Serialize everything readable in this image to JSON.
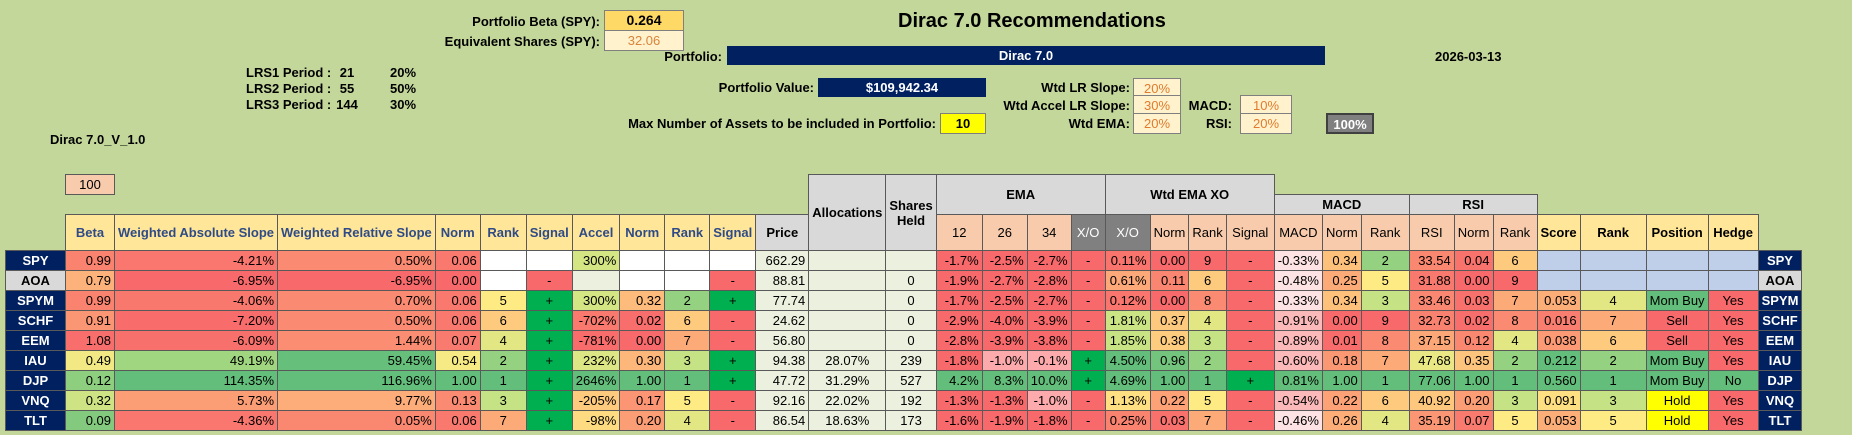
{
  "header": {
    "beta_label": "Portfolio Beta (SPY):",
    "beta_value": "0.264",
    "eq_label": "Equivalent Shares (SPY):",
    "eq_value": "32.06",
    "title": "Dirac 7.0 Recommendations",
    "portfolio_label": "Portfolio:",
    "portfolio_name": "Dirac 7.0",
    "date": "2026-03-13",
    "value_label": "Portfolio Value:",
    "value": "$109,942.34",
    "max_label": "Max Number of Assets to be included in Portfolio:",
    "max_value": "10",
    "version": "Dirac 7.0_V_1.0"
  },
  "lrs": [
    {
      "label": "LRS1 Period :",
      "period": "21",
      "pct": "20%"
    },
    {
      "label": "LRS2 Period :",
      "period": "55",
      "pct": "50%"
    },
    {
      "label": "LRS3 Period :",
      "period": "144",
      "pct": "30%"
    }
  ],
  "weights": {
    "lr_label": "Wtd LR Slope:",
    "lr": "20%",
    "accel_label": "Wtd Accel LR Slope:",
    "accel": "30%",
    "ema_label": "Wtd EMA:",
    "ema": "20%",
    "macd_label": "MACD:",
    "macd": "10%",
    "rsi_label": "RSI:",
    "rsi": "20%",
    "total": "100%"
  },
  "table": {
    "top_headers": {
      "beta_top": "100",
      "allocations": "Allocations",
      "shares": "Shares Held",
      "ema": "EMA",
      "wtd_ema_xo": "Wtd EMA XO",
      "macd": "MACD",
      "rsi": "RSI"
    },
    "headers": [
      "Beta",
      "Weighted Absolute Slope",
      "Weighted Relative Slope",
      "Norm",
      "Rank",
      "Signal",
      "Accel",
      "Norm",
      "Rank",
      "Signal",
      "Price",
      "12",
      "26",
      "34",
      "X/O",
      "X/O",
      "Norm",
      "Rank",
      "Signal",
      "MACD",
      "Norm",
      "Rank",
      "RSI",
      "Norm",
      "Rank",
      "Score",
      "Rank",
      "Position",
      "Hedge"
    ],
    "rows": [
      {
        "ticker": "SPY",
        "beta": "0.99",
        "was": "-4.21%",
        "wrs": "0.50%",
        "norm1": "0.06",
        "rank1": "",
        "sig1": "",
        "accel": "300%",
        "norm2": "",
        "rank2": "",
        "sig2": "",
        "price": "662.29",
        "alloc": "",
        "shares": "",
        "e12": "-1.7%",
        "e26": "-2.5%",
        "e34": "-2.7%",
        "xo": "-",
        "wxo": "0.11%",
        "norm3": "0.00",
        "rank3": "9",
        "sig3": "-",
        "macd": "-0.33%",
        "norm4": "0.34",
        "rank4": "2",
        "rsi": "33.54",
        "norm5": "0.04",
        "rank5": "6",
        "score": "",
        "rank6": "",
        "position": "",
        "hedge": ""
      },
      {
        "ticker": "AOA",
        "beta": "0.79",
        "was": "-6.95%",
        "wrs": "-6.95%",
        "norm1": "0.00",
        "rank1": "",
        "sig1": "-",
        "accel": "",
        "norm2": "",
        "rank2": "",
        "sig2": "-",
        "price": "88.81",
        "alloc": "",
        "shares": "0",
        "e12": "-1.9%",
        "e26": "-2.7%",
        "e34": "-2.8%",
        "xo": "-",
        "wxo": "0.61%",
        "norm3": "0.11",
        "rank3": "6",
        "sig3": "-",
        "macd": "-0.48%",
        "norm4": "0.25",
        "rank4": "5",
        "rsi": "31.88",
        "norm5": "0.00",
        "rank5": "9",
        "score": "",
        "rank6": "",
        "position": "",
        "hedge": ""
      },
      {
        "ticker": "SPYM",
        "beta": "0.99",
        "was": "-4.06%",
        "wrs": "0.70%",
        "norm1": "0.06",
        "rank1": "5",
        "sig1": "+",
        "accel": "300%",
        "norm2": "0.32",
        "rank2": "2",
        "sig2": "+",
        "price": "77.74",
        "alloc": "",
        "shares": "0",
        "e12": "-1.7%",
        "e26": "-2.5%",
        "e34": "-2.7%",
        "xo": "-",
        "wxo": "0.12%",
        "norm3": "0.00",
        "rank3": "8",
        "sig3": "-",
        "macd": "-0.33%",
        "norm4": "0.34",
        "rank4": "3",
        "rsi": "33.46",
        "norm5": "0.03",
        "rank5": "7",
        "score": "0.053",
        "rank6": "4",
        "position": "Mom Buy",
        "hedge": "Yes"
      },
      {
        "ticker": "SCHF",
        "beta": "0.91",
        "was": "-7.20%",
        "wrs": "0.50%",
        "norm1": "0.06",
        "rank1": "6",
        "sig1": "+",
        "accel": "-702%",
        "norm2": "0.02",
        "rank2": "6",
        "sig2": "-",
        "price": "24.62",
        "alloc": "",
        "shares": "0",
        "e12": "-2.9%",
        "e26": "-4.0%",
        "e34": "-3.9%",
        "xo": "-",
        "wxo": "1.81%",
        "norm3": "0.37",
        "rank3": "4",
        "sig3": "-",
        "macd": "-0.91%",
        "norm4": "0.00",
        "rank4": "9",
        "rsi": "32.73",
        "norm5": "0.02",
        "rank5": "8",
        "score": "0.016",
        "rank6": "7",
        "position": "Sell",
        "hedge": "Yes"
      },
      {
        "ticker": "EEM",
        "beta": "1.08",
        "was": "-6.09%",
        "wrs": "1.44%",
        "norm1": "0.07",
        "rank1": "4",
        "sig1": "+",
        "accel": "-781%",
        "norm2": "0.00",
        "rank2": "7",
        "sig2": "-",
        "price": "56.80",
        "alloc": "",
        "shares": "0",
        "e12": "-2.8%",
        "e26": "-3.9%",
        "e34": "-3.8%",
        "xo": "-",
        "wxo": "1.85%",
        "norm3": "0.38",
        "rank3": "3",
        "sig3": "-",
        "macd": "-0.89%",
        "norm4": "0.01",
        "rank4": "8",
        "rsi": "37.15",
        "norm5": "0.12",
        "rank5": "4",
        "score": "0.038",
        "rank6": "6",
        "position": "Sell",
        "hedge": "Yes"
      },
      {
        "ticker": "IAU",
        "beta": "0.49",
        "was": "49.19%",
        "wrs": "59.45%",
        "norm1": "0.54",
        "rank1": "2",
        "sig1": "+",
        "accel": "232%",
        "norm2": "0.30",
        "rank2": "3",
        "sig2": "+",
        "price": "94.38",
        "alloc": "28.07%",
        "shares": "239",
        "e12": "-1.8%",
        "e26": "-1.0%",
        "e34": "-0.1%",
        "xo": "+",
        "wxo": "4.50%",
        "norm3": "0.96",
        "rank3": "2",
        "sig3": "-",
        "macd": "-0.60%",
        "norm4": "0.18",
        "rank4": "7",
        "rsi": "47.68",
        "norm5": "0.35",
        "rank5": "2",
        "score": "0.212",
        "rank6": "2",
        "position": "Mom Buy",
        "hedge": "Yes"
      },
      {
        "ticker": "DJP",
        "beta": "0.12",
        "was": "114.35%",
        "wrs": "116.96%",
        "norm1": "1.00",
        "rank1": "1",
        "sig1": "+",
        "accel": "2646%",
        "norm2": "1.00",
        "rank2": "1",
        "sig2": "+",
        "price": "47.72",
        "alloc": "31.29%",
        "shares": "527",
        "e12": "4.2%",
        "e26": "8.3%",
        "e34": "10.0%",
        "xo": "+",
        "wxo": "4.69%",
        "norm3": "1.00",
        "rank3": "1",
        "sig3": "+",
        "macd": "0.81%",
        "norm4": "1.00",
        "rank4": "1",
        "rsi": "77.06",
        "norm5": "1.00",
        "rank5": "1",
        "score": "0.560",
        "rank6": "1",
        "position": "Mom Buy",
        "hedge": "No"
      },
      {
        "ticker": "VNQ",
        "beta": "0.32",
        "was": "5.73%",
        "wrs": "9.77%",
        "norm1": "0.13",
        "rank1": "3",
        "sig1": "+",
        "accel": "-205%",
        "norm2": "0.17",
        "rank2": "5",
        "sig2": "-",
        "price": "92.16",
        "alloc": "22.02%",
        "shares": "192",
        "e12": "-1.3%",
        "e26": "-1.3%",
        "e34": "-1.0%",
        "xo": "-",
        "wxo": "1.13%",
        "norm3": "0.22",
        "rank3": "5",
        "sig3": "-",
        "macd": "-0.54%",
        "norm4": "0.22",
        "rank4": "6",
        "rsi": "40.92",
        "norm5": "0.20",
        "rank5": "3",
        "score": "0.091",
        "rank6": "3",
        "position": "Hold",
        "hedge": "Yes"
      },
      {
        "ticker": "TLT",
        "beta": "0.09",
        "was": "-4.36%",
        "wrs": "0.05%",
        "norm1": "0.06",
        "rank1": "7",
        "sig1": "+",
        "accel": "-98%",
        "norm2": "0.20",
        "rank2": "4",
        "sig2": "-",
        "price": "86.54",
        "alloc": "18.63%",
        "shares": "173",
        "e12": "-1.6%",
        "e26": "-1.9%",
        "e34": "-1.8%",
        "xo": "-",
        "wxo": "0.25%",
        "norm3": "0.03",
        "rank3": "7",
        "sig3": "-",
        "macd": "-0.46%",
        "norm4": "0.26",
        "rank4": "4",
        "rsi": "35.19",
        "norm5": "0.07",
        "rank5": "5",
        "score": "0.053",
        "rank6": "5",
        "position": "Hold",
        "hedge": "Yes"
      }
    ]
  },
  "colors": {
    "red": "#f8696b",
    "pink": "#fcaaab",
    "orange": "#fcb77a",
    "lightorange": "#fdd49c",
    "yellow": "#ffeb84",
    "lightgreen": "#c5e384",
    "green": "#63be7b",
    "brightgreen": "#00b050",
    "navy": "#002060",
    "gray": "#d9d9d9",
    "pale": "#ebf1de"
  }
}
